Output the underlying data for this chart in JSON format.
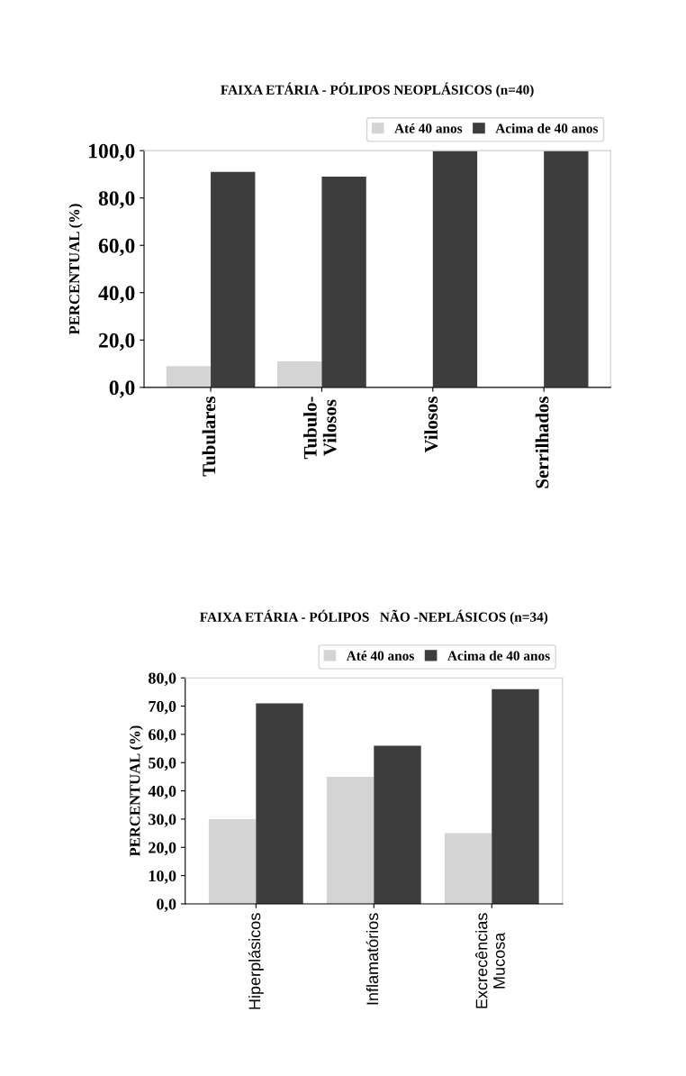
{
  "chart_data": [
    {
      "type": "bar",
      "title": "FAIXA ETÁRIA - PÓLIPOS NEOPLÁSICOS (n=40)",
      "ylabel": "PERCENTUAL (%)",
      "categories": [
        "Tubulares",
        "Tubulo-\nVilosos",
        "Vilosos",
        "Serrilhados"
      ],
      "series": [
        {
          "name": "Até 40 anos",
          "color": "#d4d4d4",
          "values": [
            9,
            11,
            0,
            0
          ]
        },
        {
          "name": "Acima de 40 anos",
          "color": "#3d3d3e",
          "values": [
            91,
            89,
            100,
            100
          ]
        }
      ],
      "ylim": [
        0,
        100
      ],
      "yticks": [
        {
          "value": 0,
          "label": "0,0"
        },
        {
          "value": 20,
          "label": "20,0"
        },
        {
          "value": 40,
          "label": "40,0"
        },
        {
          "value": 60,
          "label": "60,0"
        },
        {
          "value": 80,
          "label": "80,0"
        },
        {
          "value": 100,
          "label": "100,0"
        }
      ],
      "grid": false,
      "legend": "top right"
    },
    {
      "type": "bar",
      "title": "FAIXA ETÁRIA - PÓLIPOS   NÃO -NEPLÁSICOS (n=34)",
      "ylabel": "PERCENTUAL (%)",
      "categories": [
        "Hiperplásicos",
        "Inflamatórios",
        "Excrecências\nMucosa"
      ],
      "series": [
        {
          "name": "Até 40 anos",
          "color": "#d4d4d4",
          "values": [
            30,
            45,
            25
          ]
        },
        {
          "name": "Acima de 40 anos",
          "color": "#3d3d3e",
          "values": [
            71,
            56,
            76
          ]
        }
      ],
      "ylim": [
        0,
        80
      ],
      "yticks": [
        {
          "value": 0,
          "label": "0,0"
        },
        {
          "value": 10,
          "label": "10,0"
        },
        {
          "value": 20,
          "label": "20,0"
        },
        {
          "value": 30,
          "label": "30,0"
        },
        {
          "value": 40,
          "label": "40,0"
        },
        {
          "value": 50,
          "label": "50,0"
        },
        {
          "value": 60,
          "label": "60,0"
        },
        {
          "value": 70,
          "label": "70,0"
        },
        {
          "value": 80,
          "label": "80,0"
        }
      ],
      "grid": false,
      "legend": "top right"
    }
  ]
}
